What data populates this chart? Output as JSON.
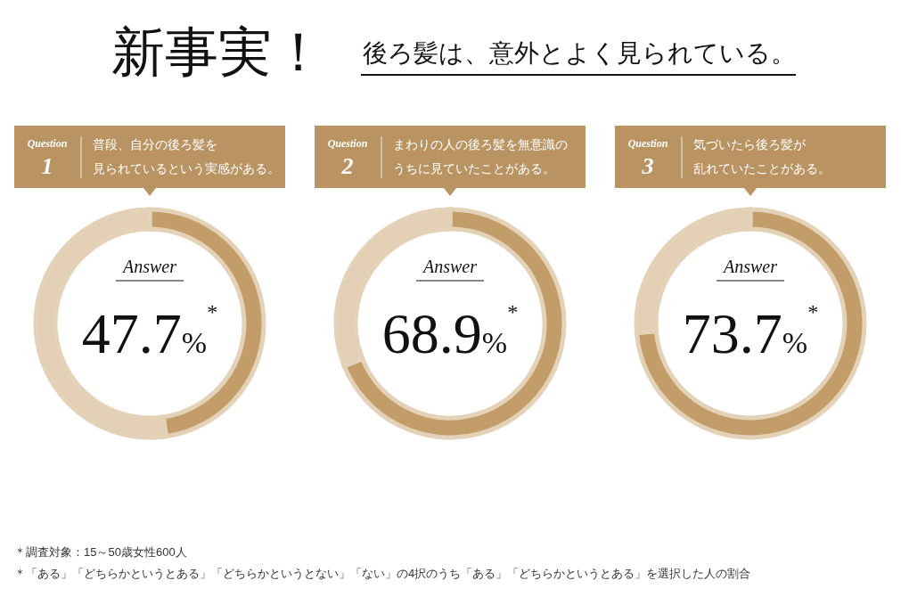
{
  "chart_data": [
    {
      "type": "other",
      "title": "新事実！",
      "subtitle": "後ろ髪は、意外とよく見られている。",
      "annotations": [
        "＊調査対象：15～50歳女性600人",
        "＊「ある」「どちらかというとある」「どちらかというとない」「ない」の4択のうち「ある」「どちらかというとある」を選択した人の割合"
      ]
    },
    {
      "type": "donut",
      "title": "普段、自分の後ろ髪を見られているという実感がある。",
      "annotations": [
        "Question",
        "1",
        "Answer",
        "47.7%$^{*}$"
      ],
      "categories": [
        null,
        null
      ],
      "values": [
        47.7,
        52.3
      ],
      "colors": [
        "#c29d6a",
        "#e2cfb4"
      ]
    },
    {
      "type": "donut",
      "title": "まわりの人の後ろ髪を無意識のうちに見ていたことがある。",
      "annotations": [
        "Question",
        "2",
        "Answer",
        "68.9%$^{*}$"
      ],
      "categories": [
        null,
        null
      ],
      "values": [
        68.9,
        31.1
      ],
      "colors": [
        "#c29d6a",
        "#e2cfb4"
      ]
    },
    {
      "type": "donut",
      "title": "気づいたら後ろ髪が乱れていたことがある。",
      "annotations": [
        "Question",
        "3",
        "Answer",
        "73.7%$^{*}$"
      ],
      "categories": [
        null,
        null
      ],
      "values": [
        73.7,
        26.3
      ],
      "colors": [
        "#c29d6a",
        "#e2cfb4"
      ]
    }
  ]
}
